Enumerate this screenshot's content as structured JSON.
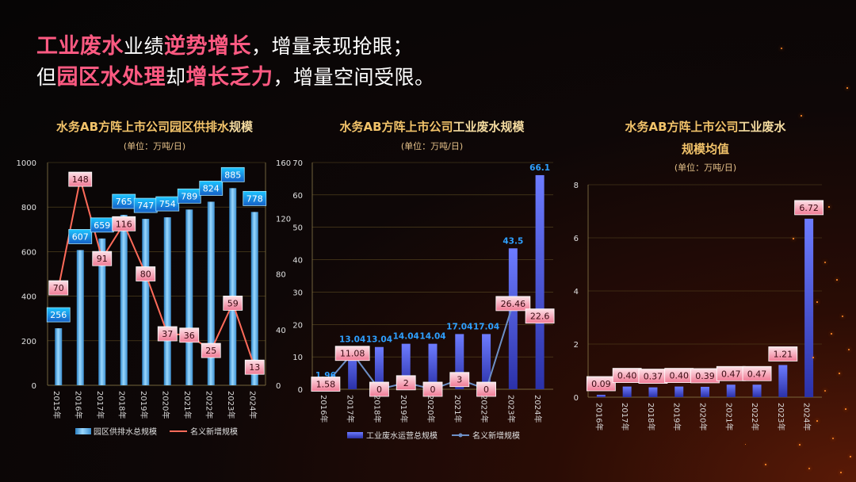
{
  "headline": {
    "line1": [
      {
        "t": "工业废水",
        "hl": true
      },
      {
        "t": "业绩",
        "hl": false
      },
      {
        "t": "逆势增长",
        "hl": true
      },
      {
        "t": "，增量表现抢眼；",
        "hl": false
      }
    ],
    "line2": [
      {
        "t": "但",
        "hl": false
      },
      {
        "t": "园区水处理",
        "hl": true
      },
      {
        "t": "却",
        "hl": false
      },
      {
        "t": "增长乏力",
        "hl": true
      },
      {
        "t": "，增量空间受限。",
        "hl": false
      }
    ]
  },
  "colors": {
    "accent": "#ff5a82",
    "title_gold": "#f2c36a",
    "bar_light_blue": "#5ab8f0",
    "bar_indigo": "#4b55d6",
    "line_red": "#ff6b5a",
    "line_steel": "#6d8fc6",
    "label_pink": "#f8a6b6",
    "label_blue": "#2b8fe0"
  },
  "chart_data": [
    {
      "type": "bar+line",
      "title_part1": "水务AB方阵上市公司园区供排水",
      "title_part2": "规模",
      "unit": "(单位：万吨/日)",
      "categories": [
        "2015年",
        "2016年",
        "2017年",
        "2018年",
        "2019年",
        "2020年",
        "2021年",
        "2022年",
        "2023年",
        "2024年"
      ],
      "series": [
        {
          "name": "园区供排水总规模",
          "kind": "bar",
          "axis": "left",
          "values": [
            256,
            607,
            659,
            765,
            747,
            754,
            789,
            824,
            885,
            778
          ]
        },
        {
          "name": "名义新增规模",
          "kind": "line",
          "axis": "right",
          "values": [
            70,
            148,
            91,
            116,
            80,
            37,
            36,
            25,
            59,
            13
          ]
        }
      ],
      "left_ticks": [
        "0",
        "200",
        "400",
        "600",
        "800",
        "1000"
      ],
      "right_ticks": [
        "0",
        "40",
        "80",
        "120",
        "160"
      ],
      "ylim_left": [
        0,
        1000
      ],
      "ylim_right": [
        0,
        160
      ]
    },
    {
      "type": "bar+line",
      "title_part1": "水务AB方阵上市公司",
      "title_part2": "工业废水规模",
      "unit": "(单位：万吨/日)",
      "categories": [
        "2016年",
        "2017年",
        "2018年",
        "2019年",
        "2020年",
        "2021年",
        "2022年",
        "2023年",
        "2024年"
      ],
      "series": [
        {
          "name": "工业废水运营总规模",
          "kind": "bar",
          "values": [
            1.96,
            13.04,
            13.04,
            14.04,
            14.04,
            17.04,
            17.04,
            43.5,
            66.1
          ],
          "labels": [
            "1.96",
            "13.04",
            "13.04",
            "14.04",
            "14.04",
            "17.04",
            "17.04",
            "43.5",
            "66.1"
          ]
        },
        {
          "name": "名义新增规模",
          "kind": "line",
          "values": [
            1.58,
            11.08,
            0,
            2,
            0,
            3,
            0,
            26.46,
            22.6
          ],
          "labels": [
            "1.58",
            "11.08",
            "0",
            "2",
            "0",
            "3",
            "0",
            "26.46",
            "22.6"
          ]
        }
      ],
      "ticks": [
        "0",
        "10",
        "20",
        "30",
        "40",
        "50",
        "60",
        "70"
      ],
      "ylim": [
        0,
        70
      ]
    },
    {
      "type": "bar",
      "title_part1": "水务AB方阵上市公司",
      "title_part2": "工业废水",
      "title_line2": "规模均值",
      "unit": "(单位：万吨/日)",
      "categories": [
        "2016年",
        "2017年",
        "2018年",
        "2019年",
        "2020年",
        "2021年",
        "2022年",
        "2023年",
        "2024年"
      ],
      "values": [
        0.09,
        0.4,
        0.37,
        0.4,
        0.39,
        0.47,
        0.47,
        1.21,
        6.72
      ],
      "labels": [
        "0.09",
        "0.40",
        "0.37",
        "0.40",
        "0.39",
        "0.47",
        "0.47",
        "1.21",
        "6.72"
      ],
      "ticks": [
        "0",
        "2",
        "4",
        "6",
        "8"
      ],
      "ylim": [
        0,
        8
      ]
    }
  ]
}
